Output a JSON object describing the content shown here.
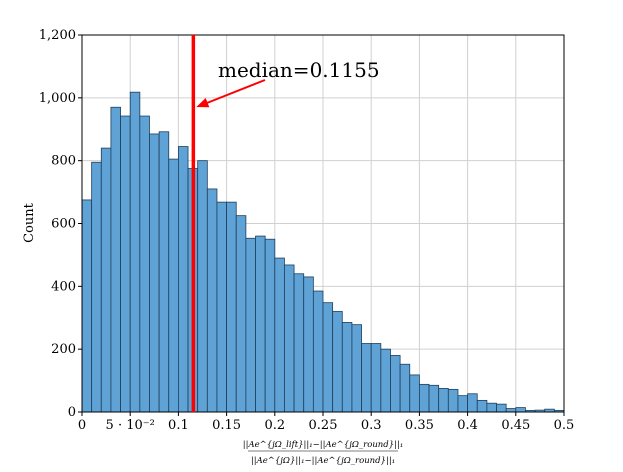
{
  "chart_data": {
    "type": "bar",
    "bin_start": 0.0,
    "bin_width": 0.01,
    "values": [
      675,
      795,
      840,
      970,
      942,
      1018,
      942,
      885,
      892,
      805,
      845,
      775,
      800,
      710,
      668,
      668,
      625,
      553,
      560,
      550,
      490,
      468,
      440,
      430,
      385,
      348,
      320,
      285,
      278,
      218,
      218,
      200,
      180,
      152,
      118,
      88,
      85,
      75,
      72,
      52,
      58,
      37,
      28,
      25,
      11,
      14,
      5,
      6,
      9,
      5
    ],
    "ylabel": "Count",
    "xlabel_html": "",
    "ylim": [
      0,
      1200
    ],
    "xlim": [
      0,
      0.5
    ],
    "y_ticks": [
      0,
      200,
      400,
      600,
      800,
      1000,
      1200
    ],
    "y_tick_labels": [
      "0",
      "200",
      "400",
      "600",
      "800",
      "1,000",
      "1,200"
    ],
    "x_ticks": [
      0,
      0.05,
      0.1,
      0.15,
      0.2,
      0.25,
      0.3,
      0.35,
      0.4,
      0.45,
      0.5
    ],
    "x_tick_labels": [
      "0",
      "5 · 10⁻²",
      "0.1",
      "0.15",
      "0.2",
      "0.25",
      "0.3",
      "0.35",
      "0.4",
      "0.45",
      "0.5"
    ],
    "grid": true,
    "median": {
      "value": 0.1155,
      "label": "median=0.1155",
      "color": "#ff0000"
    },
    "xlabel_numerator": "||Ae^{jΩ_lift}||₁−||Ae^{jΩ_round}||₁",
    "xlabel_denominator": "||Ae^{jΩ}||₁−||Ae^{jΩ_round}||₁",
    "bar_color": "#5fa2d6"
  }
}
